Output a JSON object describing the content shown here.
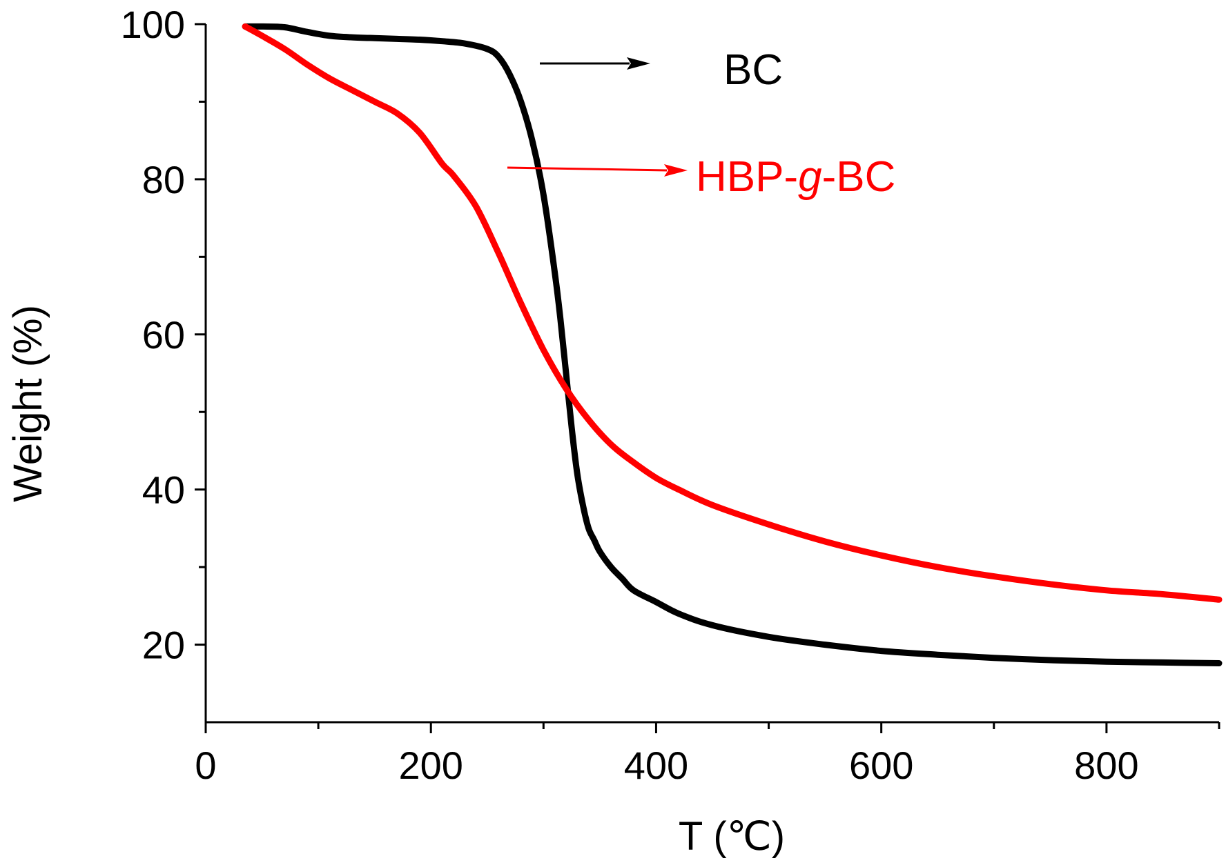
{
  "chart_data": {
    "type": "line",
    "title": "",
    "xlabel": "T (℃)",
    "ylabel": "Weight (%)",
    "xlim": [
      0,
      900
    ],
    "ylim": [
      10,
      100
    ],
    "xticks": [
      0,
      200,
      400,
      600,
      800
    ],
    "xminor": [
      100,
      300,
      500,
      700,
      900
    ],
    "yticks": [
      20,
      40,
      60,
      80,
      100
    ],
    "yminor": [
      30,
      50,
      70,
      90
    ],
    "grid": false,
    "legend": "inline-arrow-labels",
    "series": [
      {
        "name": "BC",
        "color": "#000000",
        "x": [
          35,
          50,
          70,
          90,
          110,
          130,
          150,
          170,
          190,
          210,
          230,
          250,
          260,
          270,
          280,
          290,
          300,
          310,
          315,
          320,
          325,
          330,
          335,
          340,
          345,
          350,
          360,
          370,
          380,
          400,
          420,
          450,
          500,
          550,
          600,
          650,
          700,
          750,
          800,
          850,
          900
        ],
        "y": [
          99.7,
          99.7,
          99.6,
          99.0,
          98.5,
          98.3,
          98.2,
          98.1,
          98.0,
          97.8,
          97.5,
          96.8,
          95.8,
          93.5,
          90.0,
          85.0,
          78.0,
          68.0,
          62.0,
          55.0,
          48.0,
          42.0,
          38.0,
          35.0,
          33.5,
          32.0,
          30.0,
          28.5,
          27.0,
          25.5,
          24.0,
          22.5,
          21.0,
          20.0,
          19.2,
          18.7,
          18.3,
          18.0,
          17.8,
          17.7,
          17.6
        ]
      },
      {
        "name": "HBP-g-BC",
        "name_parts": [
          "HBP-",
          "g",
          "-BC"
        ],
        "color": "#ff0000",
        "x": [
          35,
          50,
          70,
          90,
          110,
          130,
          150,
          170,
          190,
          210,
          220,
          240,
          260,
          280,
          300,
          320,
          340,
          360,
          380,
          400,
          420,
          450,
          500,
          550,
          600,
          650,
          700,
          750,
          800,
          850,
          900
        ],
        "y": [
          99.7,
          98.5,
          96.8,
          94.8,
          93.0,
          91.5,
          90.0,
          88.5,
          86.0,
          82.0,
          80.5,
          76.5,
          70.5,
          64.0,
          58.0,
          53.0,
          49.0,
          45.8,
          43.5,
          41.5,
          40.0,
          38.0,
          35.5,
          33.3,
          31.5,
          30.0,
          28.8,
          27.8,
          27.0,
          26.5,
          25.8
        ]
      }
    ]
  }
}
